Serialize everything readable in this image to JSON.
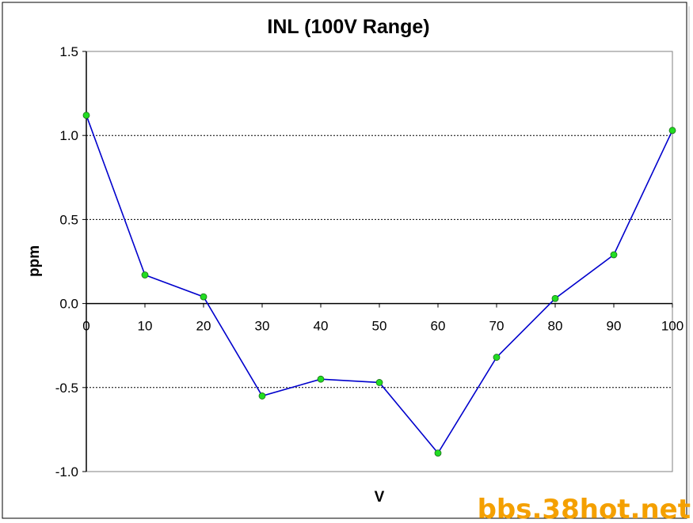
{
  "chart_data": {
    "type": "line",
    "title": "INL (100V Range)",
    "xlabel": "V",
    "ylabel": "ppm",
    "xlim": [
      0,
      100
    ],
    "ylim": [
      -1.0,
      1.5
    ],
    "x_ticks": [
      "0",
      "10",
      "20",
      "30",
      "40",
      "50",
      "60",
      "70",
      "80",
      "90",
      "100"
    ],
    "y_ticks": [
      "1.5",
      "1.0",
      "0.5",
      "0.0",
      "-0.5",
      "-1.0"
    ],
    "grid": "horizontal dotted",
    "series": [
      {
        "x": [
          0,
          10,
          20,
          30,
          40,
          50,
          60,
          70,
          80,
          90,
          100
        ],
        "values": [
          1.12,
          0.17,
          0.04,
          -0.55,
          -0.45,
          -0.47,
          -0.89,
          -0.32,
          0.03,
          0.29,
          1.03
        ],
        "line_color": "#0000cc",
        "marker_color": "#22dd22"
      }
    ]
  },
  "watermark": "bbs.38hot.net"
}
